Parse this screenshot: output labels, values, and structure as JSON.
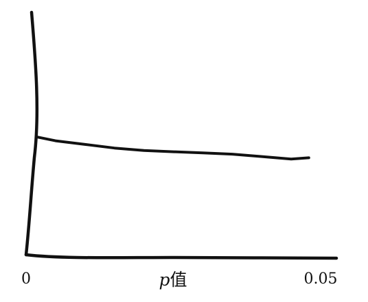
{
  "chart_data": {
    "type": "line",
    "title": "",
    "xlabel": {
      "variable": "p",
      "suffix": "值"
    },
    "ylabel": "",
    "x_ticks": [
      "0",
      "0.05"
    ],
    "xlim": [
      0,
      0.05
    ],
    "grid": false,
    "legend": "none",
    "series": [
      {
        "x": [
          0.002,
          0.005,
          0.01,
          0.015,
          0.02,
          0.025,
          0.03,
          0.035,
          0.04,
          0.045,
          0.048
        ],
        "y": [
          0.97,
          0.94,
          0.91,
          0.88,
          0.86,
          0.85,
          0.84,
          0.83,
          0.81,
          0.79,
          0.8
        ]
      }
    ]
  }
}
